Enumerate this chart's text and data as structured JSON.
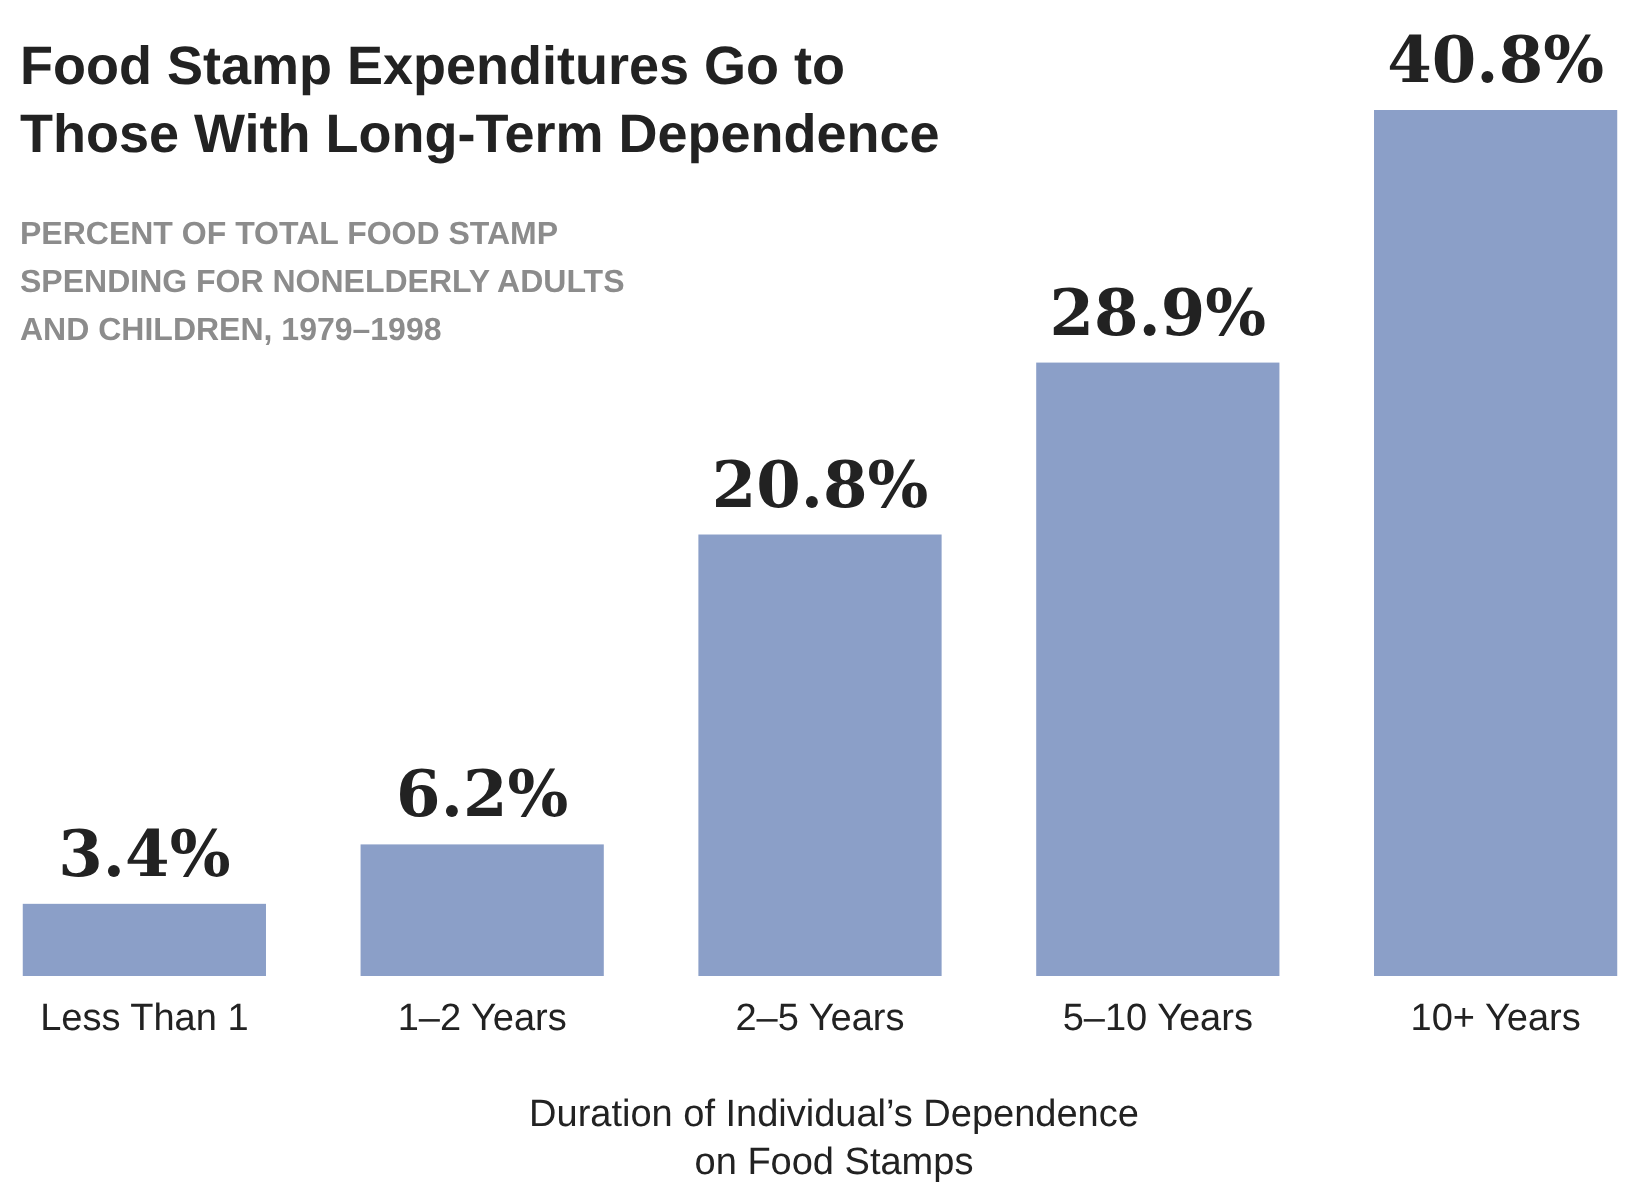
{
  "chart_data": {
    "type": "bar",
    "title": "Food Stamp Expenditures Go to\nThose With Long-Term Dependence",
    "subtitle": "PERCENT OF TOTAL FOOD STAMP\nSPENDING FOR NONELDERLY ADULTS\nAND CHILDREN, 1979–1998",
    "xlabel": "Duration of Individual’s Dependence\non Food Stamps",
    "categories": [
      "Less Than 1",
      "1–2 Years",
      "2–5 Years",
      "5–10 Years",
      "10+ Years"
    ],
    "values": [
      3.4,
      6.2,
      20.8,
      28.9,
      40.8
    ],
    "value_labels": [
      "3.4%",
      "6.2%",
      "20.8%",
      "28.9%",
      "40.8%"
    ],
    "color": "#8b9fc8"
  }
}
